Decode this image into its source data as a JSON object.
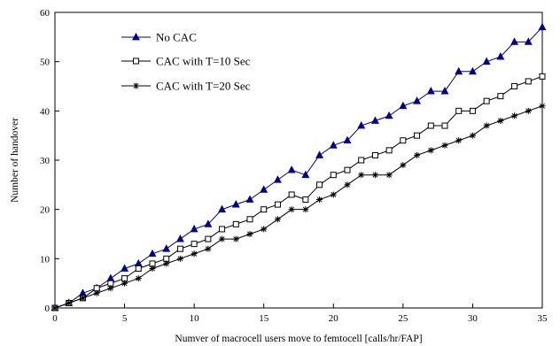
{
  "chart_data": {
    "type": "line",
    "title": "",
    "xlabel": "Numver of macrocell users move to femtocell [calls/hr/FAP]",
    "ylabel": "Number of handover",
    "xlim": [
      0,
      35
    ],
    "ylim": [
      0,
      60
    ],
    "xticks": [
      0,
      5,
      10,
      15,
      20,
      25,
      30,
      35
    ],
    "yticks": [
      0,
      10,
      20,
      30,
      40,
      50,
      60
    ],
    "grid": false,
    "legend_position": "top-left",
    "x": [
      0,
      1,
      2,
      3,
      4,
      5,
      6,
      7,
      8,
      9,
      10,
      11,
      12,
      13,
      14,
      15,
      16,
      17,
      18,
      19,
      20,
      21,
      22,
      23,
      24,
      25,
      26,
      27,
      28,
      29,
      30,
      31,
      32,
      33,
      34,
      35
    ],
    "series": [
      {
        "name": "No CAC",
        "marker": "filled-triangle",
        "color": "#00008b",
        "values": [
          0,
          1,
          3,
          4,
          6,
          8,
          9,
          11,
          12,
          14,
          16,
          17,
          20,
          21,
          22,
          24,
          26,
          28,
          27,
          31,
          33,
          34,
          37,
          38,
          39,
          41,
          42,
          44,
          44,
          48,
          48,
          50,
          51,
          54,
          54,
          57
        ]
      },
      {
        "name": "CAC with T=10 Sec",
        "marker": "open-square",
        "color": "#000000",
        "values": [
          0,
          1,
          2,
          4,
          5,
          6,
          8,
          9,
          10,
          12,
          13,
          14,
          16,
          17,
          18,
          20,
          21,
          23,
          22,
          25,
          27,
          28,
          30,
          31,
          32,
          34,
          35,
          37,
          37,
          40,
          40,
          42,
          43,
          45,
          46,
          47
        ]
      },
      {
        "name": "CAC with T=20 Sec",
        "marker": "asterisk",
        "color": "#000000",
        "values": [
          0,
          1,
          2,
          3,
          4,
          5,
          6,
          8,
          9,
          10,
          11,
          12,
          14,
          14,
          15,
          16,
          18,
          20,
          20,
          22,
          23,
          25,
          27,
          27,
          27,
          29,
          31,
          32,
          33,
          34,
          35,
          37,
          38,
          39,
          40,
          41
        ]
      }
    ]
  }
}
